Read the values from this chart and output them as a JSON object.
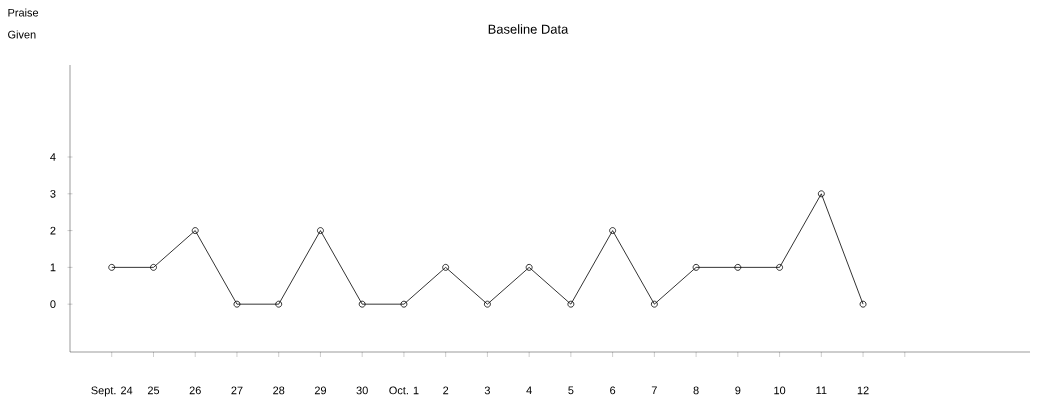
{
  "chart_data": {
    "type": "line",
    "title": "Baseline Data",
    "ylabel": "Praise Given",
    "categories": [
      "Sept. 24",
      "25",
      "26",
      "27",
      "28",
      "29",
      "30",
      "Oct. 1",
      "2",
      "3",
      "4",
      "5",
      "6",
      "7",
      "8",
      "9",
      "10",
      "11",
      "12",
      null
    ],
    "values": [
      1,
      1,
      2,
      0,
      0,
      2,
      0,
      0,
      1,
      0,
      1,
      0,
      2,
      0,
      1,
      1,
      1,
      3,
      0,
      null
    ],
    "color": "#000000",
    "marker": "circle",
    "line_style": "solid",
    "grid": false,
    "ylim": [
      -1.3,
      6.5
    ],
    "yticks": [
      0,
      1,
      2,
      3,
      4
    ]
  }
}
